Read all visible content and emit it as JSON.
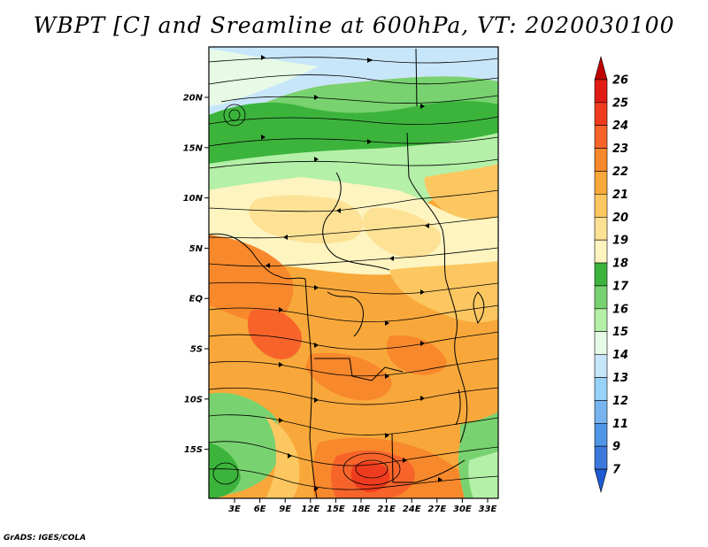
{
  "title": "WBPT [C] and Sreamline at 600hPa, VT: 2020030100",
  "footer": "GrADS: IGES/COLA",
  "map": {
    "lat_labels": [
      "20N",
      "15N",
      "10N",
      "5N",
      "EQ",
      "5S",
      "10S",
      "15S"
    ],
    "lon_labels": [
      "3E",
      "6E",
      "9E",
      "12E",
      "15E",
      "18E",
      "21E",
      "24E",
      "27E",
      "30E",
      "33E"
    ]
  },
  "colorbar": {
    "levels": [
      "26",
      "25",
      "24",
      "23",
      "22",
      "21",
      "20",
      "19",
      "18",
      "17",
      "16",
      "15",
      "14",
      "13",
      "12",
      "11",
      "9",
      "7"
    ],
    "colors": [
      "#c00000",
      "#e01c14",
      "#f03c1e",
      "#f7642a",
      "#f8882c",
      "#f8a83a",
      "#fcc760",
      "#fde296",
      "#fdf4c0",
      "#3cb43c",
      "#78d270",
      "#b4f0a8",
      "#e6fae6",
      "#c8e6fa",
      "#98d2f8",
      "#78b4f0",
      "#5096e6",
      "#3c78dc",
      "#1e5ad2"
    ]
  },
  "field_colors": {
    "light_blue": "#c8e6fa",
    "pale": "#e6fae6",
    "green_light": "#b4f0a8",
    "green_mid": "#78d270",
    "green_dark": "#3cb43c",
    "cream": "#fdf4c0",
    "yellow": "#fde296",
    "orange_light": "#fcc760",
    "orange": "#f8a83a",
    "orange_mid": "#f8882c",
    "orange_dark": "#f7642a",
    "red": "#f03c1e"
  }
}
